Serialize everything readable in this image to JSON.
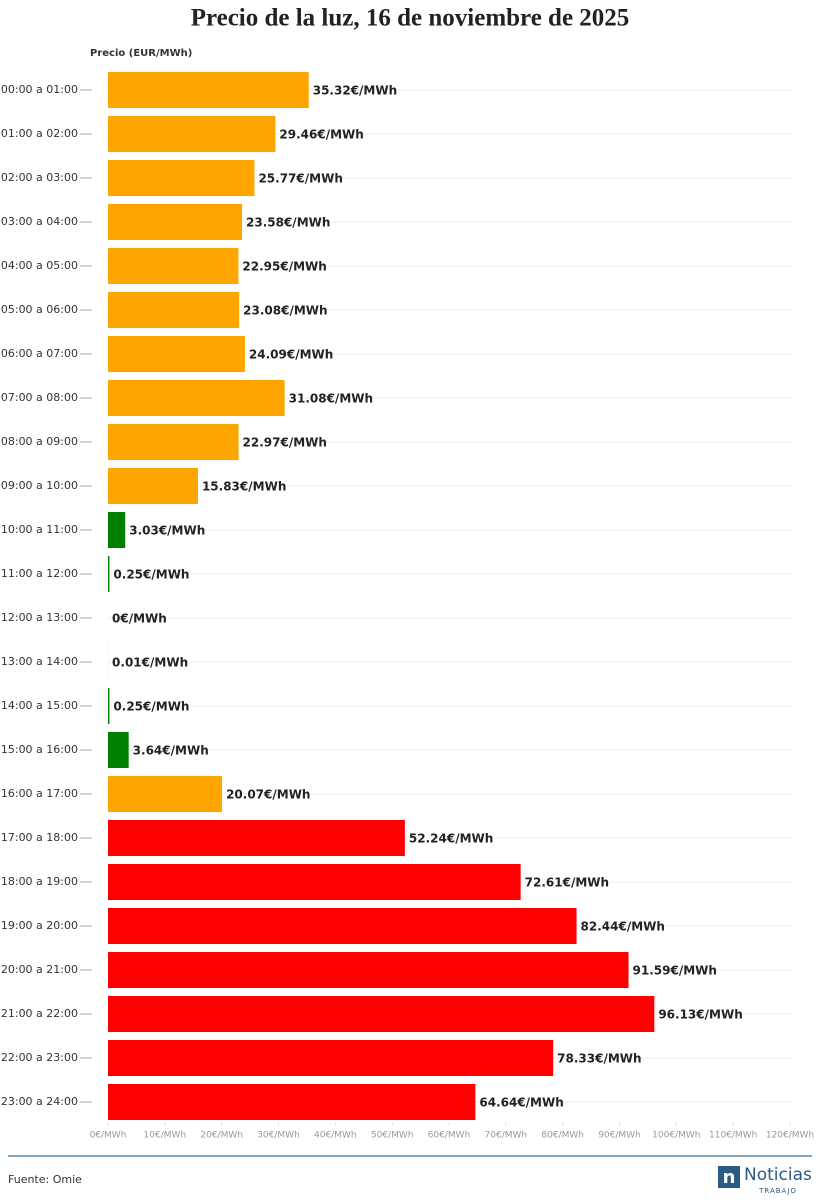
{
  "chart_data": {
    "type": "hbar",
    "title": "Precio de la luz, 16 de noviembre de 2025",
    "x_label": "Precio (EUR/MWh)",
    "categories": [
      "00:00 a 01:00",
      "01:00 a 02:00",
      "02:00 a 03:00",
      "03:00 a 04:00",
      "04:00 a 05:00",
      "05:00 a 06:00",
      "06:00 a 07:00",
      "07:00 a 08:00",
      "08:00 a 09:00",
      "09:00 a 10:00",
      "10:00 a 11:00",
      "11:00 a 12:00",
      "12:00 a 13:00",
      "13:00 a 14:00",
      "14:00 a 15:00",
      "15:00 a 16:00",
      "16:00 a 17:00",
      "17:00 a 18:00",
      "18:00 a 19:00",
      "19:00 a 20:00",
      "20:00 a 21:00",
      "21:00 a 22:00",
      "22:00 a 23:00",
      "23:00 a 24:00"
    ],
    "values": [
      35.32,
      29.46,
      25.77,
      23.58,
      22.95,
      23.08,
      24.09,
      31.08,
      22.97,
      15.83,
      3.03,
      0.25,
      0,
      0.01,
      0.25,
      3.64,
      20.07,
      52.24,
      72.61,
      82.44,
      91.59,
      96.13,
      78.33,
      64.64
    ],
    "value_labels": [
      "35.32€/MWh",
      "29.46€/MWh",
      "25.77€/MWh",
      "23.58€/MWh",
      "22.95€/MWh",
      "23.08€/MWh",
      "24.09€/MWh",
      "31.08€/MWh",
      "22.97€/MWh",
      "15.83€/MWh",
      "3.03€/MWh",
      "0.25€/MWh",
      "0€/MWh",
      "0.01€/MWh",
      "0.25€/MWh",
      "3.64€/MWh",
      "20.07€/MWh",
      "52.24€/MWh",
      "72.61€/MWh",
      "82.44€/MWh",
      "91.59€/MWh",
      "96.13€/MWh",
      "78.33€/MWh",
      "64.64€/MWh"
    ],
    "colors": [
      "#ffa500",
      "#ffa500",
      "#ffa500",
      "#ffa500",
      "#ffa500",
      "#ffa500",
      "#ffa500",
      "#ffa500",
      "#ffa500",
      "#ffa500",
      "#008000",
      "#008000",
      "#008000",
      "#008000",
      "#008000",
      "#008000",
      "#ffa500",
      "#ff0000",
      "#ff0000",
      "#ff0000",
      "#ff0000",
      "#ff0000",
      "#ff0000",
      "#ff0000"
    ],
    "xlim": [
      0,
      120
    ],
    "xticks": [
      {
        "value": 0,
        "label": "0€/MWh"
      },
      {
        "value": 10,
        "label": "10€/MWh"
      },
      {
        "value": 20,
        "label": "20€/MWh"
      },
      {
        "value": 30,
        "label": "30€/MWh"
      },
      {
        "value": 40,
        "label": "40€/MWh"
      },
      {
        "value": 50,
        "label": "50€/MWh"
      },
      {
        "value": 60,
        "label": "60€/MWh"
      },
      {
        "value": 70,
        "label": "70€/MWh"
      },
      {
        "value": 80,
        "label": "80€/MWh"
      },
      {
        "value": 90,
        "label": "90€/MWh"
      },
      {
        "value": 100,
        "label": "100€/MWh"
      },
      {
        "value": 110,
        "label": "110€/MWh"
      },
      {
        "value": 120,
        "label": "120€/MWh"
      }
    ],
    "source": "Fuente: Omie"
  },
  "logo": {
    "name": "Noticias",
    "sub": "TRABAJO"
  }
}
